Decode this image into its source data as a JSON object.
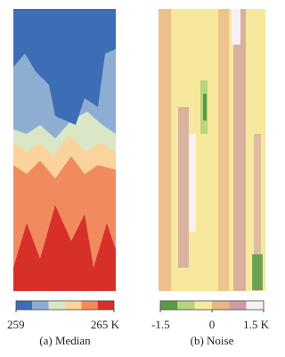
{
  "chart_data": [
    {
      "type": "heatmap",
      "title": "(a) Median",
      "colors": [
        "#3d6db5",
        "#8eadd2",
        "#d9e7c6",
        "#fad39d",
        "#f18b5d",
        "#d7302b"
      ],
      "clim": [
        259,
        265
      ],
      "cticks": [
        259,
        {
          "value": 265,
          "label": "265 K"
        }
      ]
    },
    {
      "type": "heatmap",
      "title": "(b) Noise",
      "colors": [
        "#5b9a47",
        "#b9d47d",
        "#f6e89c",
        "#e9b585",
        "#cf9da1",
        "#f7f1f6"
      ],
      "clim": [
        -1.5,
        1.5
      ],
      "cticks": [
        -1.5,
        0,
        {
          "value": 1.5,
          "label": "1.5 K"
        }
      ]
    }
  ]
}
